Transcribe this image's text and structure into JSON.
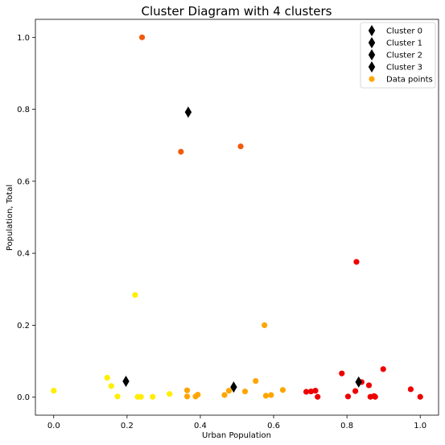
{
  "chart_data": {
    "type": "scatter",
    "title": "Cluster Diagram with 4 clusters",
    "xlabel": "Urban Population",
    "ylabel": "Population, Total",
    "xlim": [
      -0.05,
      1.05
    ],
    "ylim": [
      -0.05,
      1.05
    ],
    "xticks": [
      0.0,
      0.2,
      0.4,
      0.6,
      0.8,
      1.0
    ],
    "yticks": [
      0.0,
      0.2,
      0.4,
      0.6,
      0.8,
      1.0
    ],
    "xtick_labels": [
      "0.0",
      "0.2",
      "0.4",
      "0.6",
      "0.8",
      "1.0"
    ],
    "ytick_labels": [
      "0.0",
      "0.2",
      "0.4",
      "0.6",
      "0.8",
      "1.0"
    ],
    "grid": false,
    "legend_position": "top-right",
    "colors": {
      "cluster_yellow": "#ffee00",
      "cluster_orange": "#ffa500",
      "cluster_red": "#ee0000",
      "cluster_darkorange": "#f25a0c",
      "center_marker": "#000000"
    },
    "series": [
      {
        "name": "Cluster 0",
        "marker": "diamond",
        "color": "#000000",
        "points": [
          [
            0.832,
            0.042
          ]
        ]
      },
      {
        "name": "Cluster 1",
        "marker": "diamond",
        "color": "#000000",
        "points": [
          [
            0.197,
            0.044
          ]
        ]
      },
      {
        "name": "Cluster 2",
        "marker": "diamond",
        "color": "#000000",
        "points": [
          [
            0.367,
            0.792
          ]
        ]
      },
      {
        "name": "Cluster 3",
        "marker": "diamond",
        "color": "#000000",
        "points": [
          [
            0.491,
            0.028
          ]
        ]
      },
      {
        "name": "Data points",
        "marker": "circle",
        "color": "#ffa500",
        "points": [
          {
            "x": 0.241,
            "y": 1.0,
            "color": "#f25a0c"
          },
          {
            "x": 0.347,
            "y": 0.682,
            "color": "#f25a0c"
          },
          {
            "x": 0.51,
            "y": 0.697,
            "color": "#f25a0c"
          },
          {
            "x": 0.0,
            "y": 0.018,
            "color": "#ffee00"
          },
          {
            "x": 0.146,
            "y": 0.054,
            "color": "#ffee00"
          },
          {
            "x": 0.157,
            "y": 0.031,
            "color": "#ffee00"
          },
          {
            "x": 0.174,
            "y": 0.002,
            "color": "#ffee00"
          },
          {
            "x": 0.222,
            "y": 0.284,
            "color": "#ffee00"
          },
          {
            "x": 0.229,
            "y": 0.001,
            "color": "#ffee00"
          },
          {
            "x": 0.238,
            "y": 0.001,
            "color": "#ffee00"
          },
          {
            "x": 0.27,
            "y": 0.001,
            "color": "#ffee00"
          },
          {
            "x": 0.316,
            "y": 0.009,
            "color": "#ffee00"
          },
          {
            "x": 0.364,
            "y": 0.019,
            "color": "#ffa500"
          },
          {
            "x": 0.364,
            "y": 0.002,
            "color": "#ffa500"
          },
          {
            "x": 0.387,
            "y": 0.002,
            "color": "#ffa500"
          },
          {
            "x": 0.393,
            "y": 0.007,
            "color": "#ffa500"
          },
          {
            "x": 0.466,
            "y": 0.006,
            "color": "#ffa500"
          },
          {
            "x": 0.478,
            "y": 0.018,
            "color": "#ffa500"
          },
          {
            "x": 0.522,
            "y": 0.016,
            "color": "#ffa500"
          },
          {
            "x": 0.551,
            "y": 0.045,
            "color": "#ffa500"
          },
          {
            "x": 0.575,
            "y": 0.2,
            "color": "#ffa500"
          },
          {
            "x": 0.579,
            "y": 0.004,
            "color": "#ffa500"
          },
          {
            "x": 0.593,
            "y": 0.006,
            "color": "#ffa500"
          },
          {
            "x": 0.625,
            "y": 0.02,
            "color": "#ffa500"
          },
          {
            "x": 0.689,
            "y": 0.015,
            "color": "#ee0000"
          },
          {
            "x": 0.702,
            "y": 0.016,
            "color": "#ee0000"
          },
          {
            "x": 0.714,
            "y": 0.018,
            "color": "#ee0000"
          },
          {
            "x": 0.72,
            "y": 0.001,
            "color": "#ee0000"
          },
          {
            "x": 0.786,
            "y": 0.066,
            "color": "#ee0000"
          },
          {
            "x": 0.803,
            "y": 0.002,
            "color": "#ee0000"
          },
          {
            "x": 0.823,
            "y": 0.017,
            "color": "#ee0000"
          },
          {
            "x": 0.826,
            "y": 0.376,
            "color": "#ee0000"
          },
          {
            "x": 0.84,
            "y": 0.042,
            "color": "#ee0000"
          },
          {
            "x": 0.86,
            "y": 0.033,
            "color": "#ee0000"
          },
          {
            "x": 0.864,
            "y": 0.001,
            "color": "#ee0000"
          },
          {
            "x": 0.874,
            "y": 0.003,
            "color": "#ee0000"
          },
          {
            "x": 0.877,
            "y": 0.001,
            "color": "#ee0000"
          },
          {
            "x": 0.899,
            "y": 0.078,
            "color": "#ee0000"
          },
          {
            "x": 0.974,
            "y": 0.022,
            "color": "#ee0000"
          },
          {
            "x": 1.0,
            "y": 0.001,
            "color": "#ee0000"
          }
        ]
      }
    ]
  }
}
